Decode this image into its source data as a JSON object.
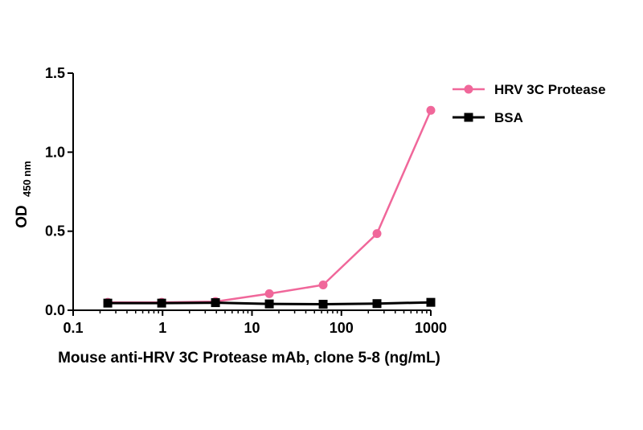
{
  "chart_data": {
    "type": "line",
    "title": "",
    "xlabel": "Mouse anti-HRV 3C Protease mAb, clone 5-8 (ng/mL)",
    "ylabel": "OD",
    "ylabel_sub": "450 nm",
    "x_scale": "log",
    "xlim": [
      0.1,
      1000
    ],
    "ylim": [
      0,
      1.5
    ],
    "x_ticks": [
      "0.1",
      "1",
      "10",
      "100",
      "1000"
    ],
    "y_ticks": [
      "0.0",
      "0.5",
      "1.0",
      "1.5"
    ],
    "grid": false,
    "legend_position": "top-right",
    "series": [
      {
        "name": "HRV 3C Protease",
        "color": "#f0679a",
        "marker": "circle",
        "x": [
          0.244,
          0.977,
          3.906,
          15.625,
          62.5,
          250,
          1000
        ],
        "y": [
          0.05,
          0.05,
          0.055,
          0.105,
          0.16,
          0.485,
          1.265
        ]
      },
      {
        "name": "BSA",
        "color": "#000000",
        "marker": "square",
        "x": [
          0.244,
          0.977,
          3.906,
          15.625,
          62.5,
          250,
          1000
        ],
        "y": [
          0.045,
          0.045,
          0.048,
          0.04,
          0.038,
          0.042,
          0.05
        ]
      }
    ]
  }
}
